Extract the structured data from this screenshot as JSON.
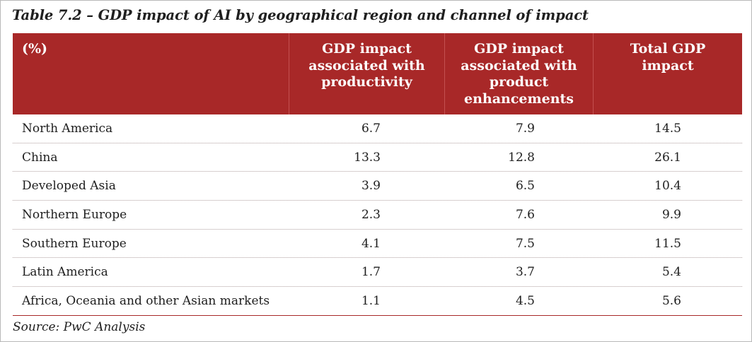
{
  "title": "Table 7.2 – GDP impact of AI by geographical region and channel of impact",
  "headers": [
    "(%)",
    "GDP impact\nassociated with\nproductivity",
    "GDP impact\nassociated with\nproduct\nenhancements",
    "Total GDP\nimpact"
  ],
  "rows": [
    {
      "region": "North America",
      "productivity": "6.7",
      "product": "7.9",
      "total": "14.5"
    },
    {
      "region": "China",
      "productivity": "13.3",
      "product": "12.8",
      "total": "26.1"
    },
    {
      "region": "Developed Asia",
      "productivity": "3.9",
      "product": "6.5",
      "total": "10.4"
    },
    {
      "region": "Northern Europe",
      "productivity": "2.3",
      "product": "7.6",
      "total": "9.9"
    },
    {
      "region": "Southern Europe",
      "productivity": "4.1",
      "product": "7.5",
      "total": "11.5"
    },
    {
      "region": "Latin America",
      "productivity": "1.7",
      "product": "3.7",
      "total": "5.4"
    },
    {
      "region": "Africa, Oceania and other Asian markets",
      "productivity": "1.1",
      "product": "4.5",
      "total": "5.6"
    }
  ],
  "source": "Source: PwC Analysis",
  "colors": {
    "header_bg": "#a82828",
    "header_text": "#ffffff"
  }
}
